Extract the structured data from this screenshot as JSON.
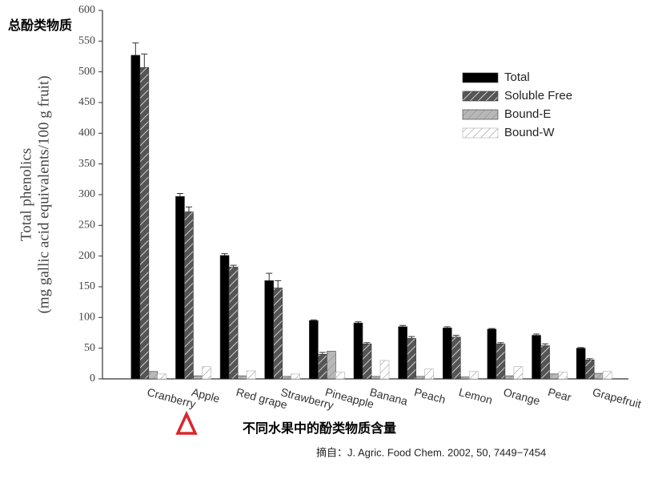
{
  "chart_data": {
    "type": "bar",
    "annotations": [
      "总酚类物质",
      "不同水果中的酚类物质含量",
      "摘自：J. Agric. Food Chem. 2002, 50, 7449−7454"
    ],
    "y_label": [
      "Total phenolics",
      "(mg gallic acid equivalents/100 g fruit)"
    ],
    "categories": [
      "Cranberry",
      "Apple",
      "Red grape",
      "Strawberry",
      "Pineapple",
      "Banana",
      "Peach",
      "Lemon",
      "Orange",
      "Pear",
      "Grapefruit"
    ],
    "series": [
      {
        "name": "Total",
        "color": "#000000",
        "hatch": false,
        "values": [
          527,
          297,
          201,
          160,
          95,
          91,
          85,
          83,
          81,
          71,
          50
        ],
        "errors": [
          20,
          5,
          3,
          12,
          1,
          2,
          2,
          2,
          1,
          2,
          1
        ]
      },
      {
        "name": "Soluble Free",
        "color": "#555555",
        "hatch": true,
        "values": [
          507,
          272,
          182,
          148,
          40,
          57,
          66,
          68,
          57,
          54,
          31
        ],
        "errors": [
          22,
          8,
          3,
          12,
          3,
          2,
          3,
          3,
          2,
          3,
          2
        ]
      },
      {
        "name": "Bound-E",
        "color": "#b8b8b8",
        "hatch": true,
        "values": [
          12,
          5,
          5,
          4,
          45,
          4,
          4,
          3,
          5,
          8,
          9
        ]
      },
      {
        "name": "Bound-W",
        "color": "#ffffff",
        "hatch": true,
        "values": [
          8,
          20,
          13,
          8,
          11,
          30,
          16,
          12,
          20,
          11,
          12
        ]
      }
    ],
    "ylim": [
      0,
      600
    ],
    "yticks": [
      0,
      50,
      100,
      150,
      200,
      250,
      300,
      350,
      400,
      450,
      500,
      550,
      600
    ],
    "legend": "upper right"
  }
}
